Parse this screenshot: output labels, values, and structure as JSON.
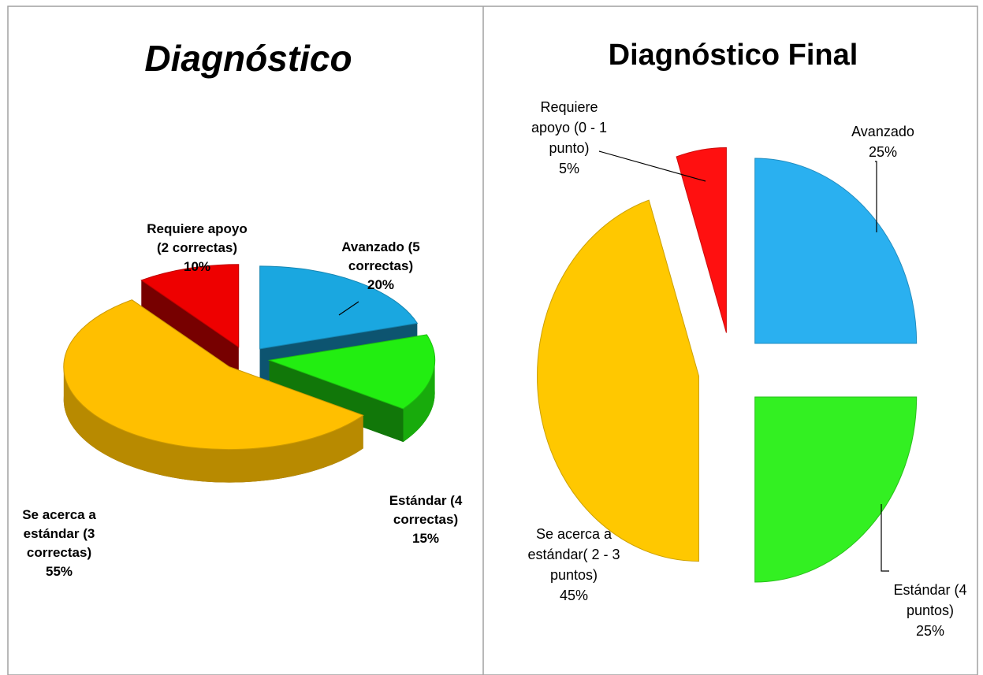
{
  "chart_data": [
    {
      "type": "pie3d",
      "title": "Diagnóstico",
      "categories": [
        "Avanzado (5 correctas)",
        "Estándar (4 correctas)",
        "Se acerca a estándar (3 correctas)",
        "Requiere apoyo (2 correctas)"
      ],
      "values": [
        20,
        15,
        55,
        10
      ],
      "value_labels": [
        "20%",
        "15%",
        "55%",
        "10%"
      ],
      "colors": [
        "#1aa7e0",
        "#22ee11",
        "#ffbf00",
        "#ee0000"
      ]
    },
    {
      "type": "pie",
      "title": "Diagnóstico Final",
      "categories": [
        "Avanzado",
        "Estándar (4 puntos)",
        "Se acerca a estándar( 2 - 3 puntos)",
        "Requiere apoyo (0 - 1 punto)"
      ],
      "values": [
        25,
        25,
        45,
        5
      ],
      "value_labels": [
        "25%",
        "25%",
        "45%",
        "5%"
      ],
      "colors": [
        "#2ab0f0",
        "#33f022",
        "#ffc800",
        "#ff1010"
      ]
    }
  ]
}
